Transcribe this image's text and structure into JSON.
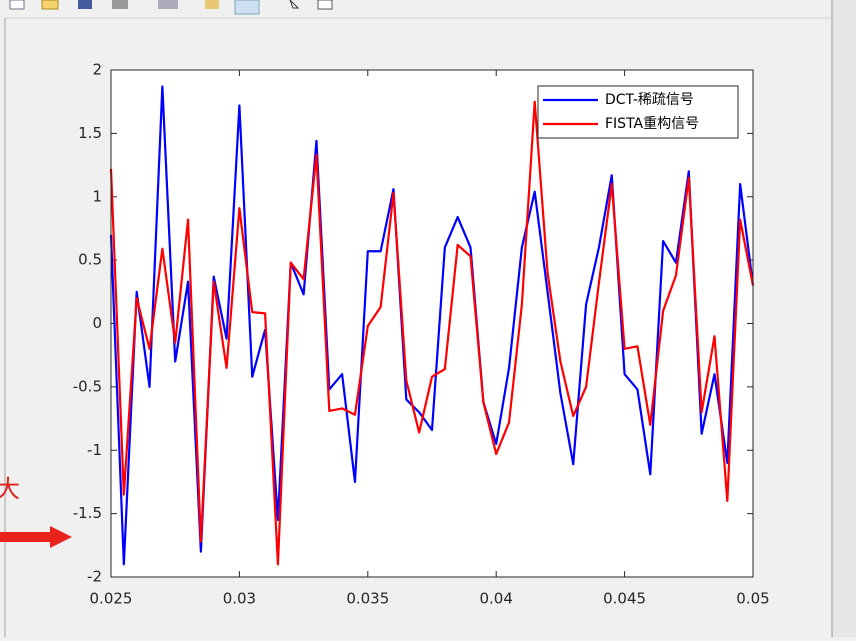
{
  "chart_data": {
    "type": "line",
    "annotation": "大",
    "x": [
      0.025,
      0.0255,
      0.026,
      0.0265,
      0.027,
      0.0275,
      0.028,
      0.0285,
      0.029,
      0.0295,
      0.03,
      0.0305,
      0.031,
      0.0315,
      0.032,
      0.0325,
      0.033,
      0.0335,
      0.034,
      0.0345,
      0.035,
      0.0355,
      0.036,
      0.0365,
      0.037,
      0.0375,
      0.038,
      0.0385,
      0.039,
      0.0395,
      0.04,
      0.0405,
      0.041,
      0.0415,
      0.042,
      0.0425,
      0.043,
      0.0435,
      0.044,
      0.0445,
      0.045,
      0.0455,
      0.046,
      0.0465,
      0.047,
      0.0475,
      0.048,
      0.0485,
      0.049,
      0.0495,
      0.05
    ],
    "series": [
      {
        "name": "DCT-稀疏信号",
        "color": "#0000ff",
        "values": [
          0.7,
          -1.9,
          0.25,
          -0.5,
          1.87,
          -0.3,
          0.33,
          -1.8,
          0.37,
          -0.12,
          1.72,
          -0.42,
          -0.05,
          -1.55,
          0.48,
          0.23,
          1.44,
          -0.52,
          -0.4,
          -1.25,
          0.57,
          0.57,
          1.06,
          -0.6,
          -0.7,
          -0.84,
          0.6,
          0.84,
          0.6,
          -0.62,
          -0.95,
          -0.35,
          0.6,
          1.04,
          0.25,
          -0.55,
          -1.11,
          0.15,
          0.6,
          1.17,
          -0.4,
          -0.52,
          -1.19,
          0.65,
          0.48,
          1.2,
          -0.87,
          -0.4,
          -1.1,
          1.1,
          0.3
        ]
      },
      {
        "name": "FISTA重构信号",
        "color": "#ff0000",
        "values": [
          1.22,
          -1.35,
          0.2,
          -0.2,
          0.59,
          -0.15,
          0.82,
          -1.72,
          0.33,
          -0.35,
          0.91,
          0.09,
          0.08,
          -1.9,
          0.48,
          0.35,
          1.33,
          -0.69,
          -0.67,
          -0.72,
          -0.02,
          0.13,
          1.03,
          -0.45,
          -0.86,
          -0.42,
          -0.36,
          0.62,
          0.53,
          -0.62,
          -1.03,
          -0.78,
          0.15,
          1.75,
          0.4,
          -0.3,
          -0.73,
          -0.5,
          0.32,
          1.1,
          -0.2,
          -0.18,
          -0.8,
          0.1,
          0.38,
          1.15,
          -0.7,
          -0.1,
          -1.4,
          0.82,
          0.3
        ]
      }
    ],
    "xlim": [
      0.025,
      0.05
    ],
    "xticks": [
      0.025,
      0.03,
      0.035,
      0.04,
      0.045,
      0.05
    ],
    "ylim": [
      -2,
      2
    ],
    "yticks": [
      -2,
      -1.5,
      -1,
      -0.5,
      0,
      0.5,
      1,
      1.5,
      2
    ],
    "legend": "upper right"
  }
}
